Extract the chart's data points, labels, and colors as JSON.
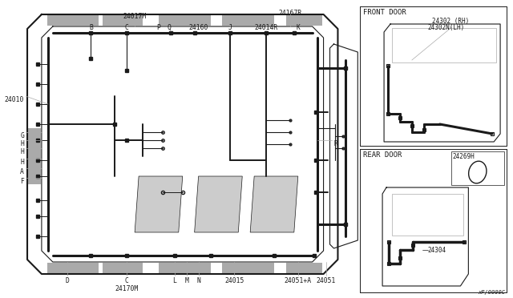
{
  "bg_color": "#ffffff",
  "line_color": "#1a1a1a",
  "gray_color": "#aaaaaa",
  "light_gray": "#cccccc",
  "title_bottom": "xP/0000C",
  "front_door": {
    "label": "FRONT DOOR",
    "part1": "24302 (RH)",
    "part2": "24302N(LH)"
  },
  "rear_door": {
    "label": "REAR DOOR",
    "part_grommet": "24269H",
    "part_harness": "24304"
  }
}
